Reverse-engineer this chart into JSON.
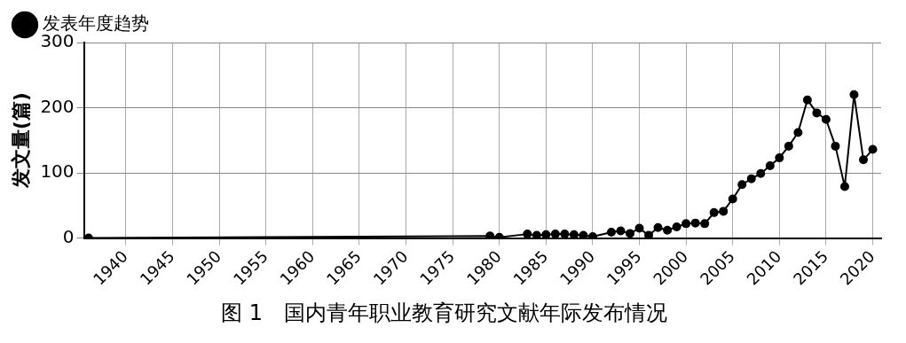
{
  "chart_data": {
    "type": "line",
    "title": "图 1　国内青年职业教育研究文献年际发布情况",
    "ylabel": "发文量(篇)",
    "series": [
      {
        "name": "发表年度趋势",
        "color": "#000000",
        "x": [
          1936,
          1979,
          1980,
          1983,
          1984,
          1985,
          1986,
          1987,
          1988,
          1989,
          1990,
          1992,
          1993,
          1994,
          1995,
          1996,
          1997,
          1998,
          1999,
          2000,
          2001,
          2002,
          2003,
          2004,
          2005,
          2006,
          2007,
          2008,
          2009,
          2010,
          2011,
          2012,
          2013,
          2014,
          2015,
          2016,
          2017,
          2018,
          2019,
          2020
        ],
        "values": [
          0,
          3,
          1,
          6,
          4,
          5,
          6,
          6,
          5,
          4,
          2,
          9,
          11,
          7,
          15,
          4,
          16,
          12,
          17,
          22,
          23,
          22,
          39,
          41,
          60,
          82,
          91,
          99,
          111,
          123,
          141,
          162,
          212,
          192,
          182,
          141,
          79,
          220,
          120,
          136
        ]
      }
    ],
    "xlim": [
      1935.5,
      2020.9
    ],
    "xticks": [
      1940,
      1945,
      1950,
      1955,
      1960,
      1965,
      1970,
      1975,
      1980,
      1985,
      1990,
      1995,
      2000,
      2005,
      2010,
      2015,
      2020
    ],
    "ylim": [
      0,
      300
    ],
    "yticks": [
      0,
      100,
      200,
      300
    ],
    "grid": true,
    "legend": "top left",
    "marker": "circle",
    "line_style": "solid"
  }
}
